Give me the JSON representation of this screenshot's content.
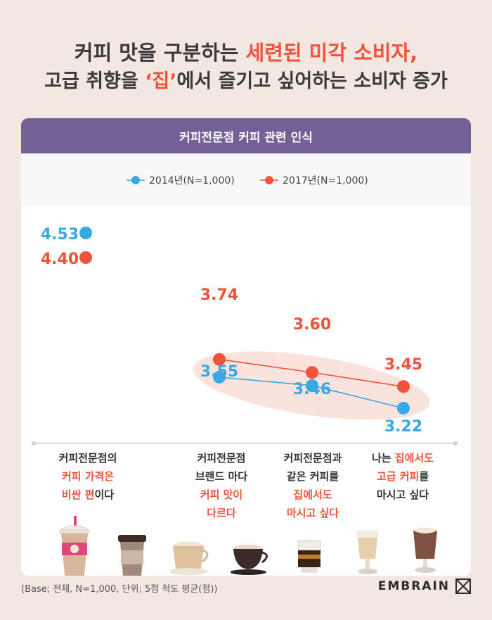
{
  "headline": {
    "line1_a": "커피 맛을 구분하는 ",
    "line1_b": "세련된 미각 소비자,",
    "line2_a": "고급 취향을 ",
    "line2_b": "‘집’",
    "line2_c": "에서 즐기고 싶어하는 소비자 증가"
  },
  "card_title": "커피전문점 커피 관련 인식",
  "colors": {
    "series_2014": "#3aa8e4",
    "series_2017": "#f0533c",
    "header": "#736097",
    "highlight": "#f0533c"
  },
  "chart_data": {
    "type": "line",
    "categories": [
      "커피전문점의 커피 가격은 비싼 편이다",
      "커피전문점 브랜드 마다 커피 맛이 다르다",
      "커피전문점과 같은 커피를 집에서도 마시고 싶다",
      "나는 집에서도 고급 커피를 마시고 싶다"
    ],
    "series": [
      {
        "name": "2014년(N=1,000)",
        "values": [
          4.53,
          3.55,
          3.46,
          3.22
        ]
      },
      {
        "name": "2017년(N=1,000)",
        "values": [
          4.4,
          3.74,
          3.6,
          3.45
        ]
      }
    ],
    "data_labels": {
      "2014": [
        "4.53",
        "3.55",
        "3.46",
        "3.22"
      ],
      "2017": [
        "4.40",
        "3.74",
        "3.60",
        "3.45"
      ]
    },
    "ylabel": "",
    "legend_position": "top-center",
    "grid": false
  },
  "category_lines": [
    [
      {
        "t": "커피전문점의",
        "h": false
      },
      {
        "t": "커피 가격은",
        "h": true
      },
      {
        "t": "비싼 편",
        "h": true,
        "tail": "이다"
      }
    ],
    [
      {
        "t": "커피전문점",
        "h": false
      },
      {
        "t": "브랜드 마다",
        "h": false
      },
      {
        "t": "커피 맛이",
        "h": true
      },
      {
        "t": "다르다",
        "h": true
      }
    ],
    [
      {
        "t": "커피전문점과",
        "h": false
      },
      {
        "t": "같은 커피를",
        "h": false
      },
      {
        "t": "집에서도",
        "h": true
      },
      {
        "t": "마시고 싶다",
        "h": true
      }
    ],
    [
      {
        "pre": "나는 ",
        "t": "집에서도",
        "h": true
      },
      {
        "t": "고급 커피",
        "h": true,
        "tail": "를"
      },
      {
        "t": "마시고 싶다",
        "h": false
      }
    ]
  ],
  "footnote": "(Base; 전체, N=1,000, 단위; 5점 척도 평균(점))",
  "brand": "EMBRAIN",
  "icons": [
    "frappe-cup-icon",
    "takeaway-cup-icon",
    "latte-cup-icon",
    "cappuccino-cup-icon",
    "espresso-glass-icon",
    "latte-glass-icon",
    "mocha-glass-icon"
  ]
}
